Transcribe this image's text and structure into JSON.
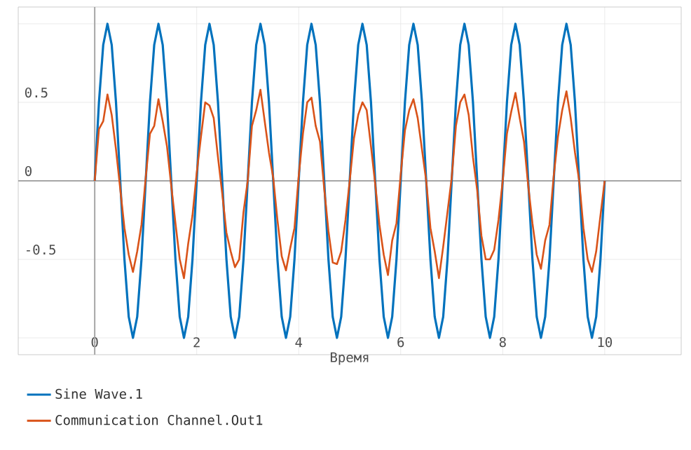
{
  "chart_data": {
    "type": "line",
    "xlabel": "Время",
    "x": [
      0,
      0.083,
      0.167,
      0.25,
      0.333,
      0.417,
      0.5,
      0.583,
      0.667,
      0.75,
      0.833,
      0.917,
      1,
      1.083,
      1.167,
      1.25,
      1.333,
      1.417,
      1.5,
      1.583,
      1.667,
      1.75,
      1.833,
      1.917,
      2,
      2.083,
      2.167,
      2.25,
      2.333,
      2.417,
      2.5,
      2.583,
      2.667,
      2.75,
      2.833,
      2.917,
      3,
      3.083,
      3.167,
      3.25,
      3.333,
      3.417,
      3.5,
      3.583,
      3.667,
      3.75,
      3.833,
      3.917,
      4,
      4.083,
      4.167,
      4.25,
      4.333,
      4.417,
      4.5,
      4.583,
      4.667,
      4.75,
      4.833,
      4.917,
      5,
      5.083,
      5.167,
      5.25,
      5.333,
      5.417,
      5.5,
      5.583,
      5.667,
      5.75,
      5.833,
      5.917,
      6,
      6.083,
      6.167,
      6.25,
      6.333,
      6.417,
      6.5,
      6.583,
      6.667,
      6.75,
      6.833,
      6.917,
      7,
      7.083,
      7.167,
      7.25,
      7.333,
      7.417,
      7.5,
      7.583,
      7.667,
      7.75,
      7.833,
      7.917,
      8,
      8.083,
      8.167,
      8.25,
      8.333,
      8.417,
      8.5,
      8.583,
      8.667,
      8.75,
      8.833,
      8.917,
      9,
      9.083,
      9.167,
      9.25,
      9.333,
      9.417,
      9.5,
      9.583,
      9.667,
      9.75,
      9.833,
      9.917,
      10
    ],
    "series": [
      {
        "name": "Sine Wave.1",
        "color": "#0072bd",
        "values": [
          0,
          0.5,
          0.866,
          1,
          0.866,
          0.5,
          0,
          -0.5,
          -0.866,
          -1,
          -0.866,
          -0.5,
          0,
          0.5,
          0.866,
          1,
          0.866,
          0.5,
          0,
          -0.5,
          -0.866,
          -1,
          -0.866,
          -0.5,
          0,
          0.5,
          0.866,
          1,
          0.866,
          0.5,
          0,
          -0.5,
          -0.866,
          -1,
          -0.866,
          -0.5,
          0,
          0.5,
          0.866,
          1,
          0.866,
          0.5,
          0,
          -0.5,
          -0.866,
          -1,
          -0.866,
          -0.5,
          0,
          0.5,
          0.866,
          1,
          0.866,
          0.5,
          0,
          -0.5,
          -0.866,
          -1,
          -0.866,
          -0.5,
          0,
          0.5,
          0.866,
          1,
          0.866,
          0.5,
          0,
          -0.5,
          -0.866,
          -1,
          -0.866,
          -0.5,
          0,
          0.5,
          0.866,
          1,
          0.866,
          0.5,
          0,
          -0.5,
          -0.866,
          -1,
          -0.866,
          -0.5,
          0,
          0.5,
          0.866,
          1,
          0.866,
          0.5,
          0,
          -0.5,
          -0.866,
          -1,
          -0.866,
          -0.5,
          0,
          0.5,
          0.866,
          1,
          0.866,
          0.5,
          0,
          -0.5,
          -0.866,
          -1,
          -0.866,
          -0.5,
          0,
          0.5,
          0.866,
          1,
          0.866,
          0.5,
          0,
          -0.5,
          -0.866,
          -1,
          -0.866,
          -0.5,
          0
        ]
      },
      {
        "name": "Communication Channel.Out1",
        "color": "#d95319",
        "values": [
          0,
          0.33,
          0.38,
          0.55,
          0.42,
          0.2,
          -0.05,
          -0.3,
          -0.47,
          -0.58,
          -0.45,
          -0.28,
          0.02,
          0.3,
          0.35,
          0.52,
          0.38,
          0.22,
          -0.03,
          -0.27,
          -0.5,
          -0.62,
          -0.4,
          -0.22,
          0.05,
          0.28,
          0.5,
          0.48,
          0.4,
          0.15,
          -0.08,
          -0.33,
          -0.45,
          -0.55,
          -0.5,
          -0.2,
          0,
          0.35,
          0.45,
          0.58,
          0.38,
          0.18,
          0.02,
          -0.25,
          -0.48,
          -0.57,
          -0.43,
          -0.3,
          0.03,
          0.3,
          0.5,
          0.53,
          0.35,
          0.25,
          -0.05,
          -0.32,
          -0.52,
          -0.53,
          -0.45,
          -0.25,
          0,
          0.27,
          0.42,
          0.5,
          0.45,
          0.22,
          -0.02,
          -0.28,
          -0.47,
          -0.6,
          -0.38,
          -0.27,
          0.04,
          0.32,
          0.45,
          0.52,
          0.4,
          0.2,
          0,
          -0.3,
          -0.45,
          -0.62,
          -0.42,
          -0.2,
          0.02,
          0.35,
          0.5,
          0.55,
          0.42,
          0.15,
          -0.06,
          -0.35,
          -0.5,
          -0.5,
          -0.44,
          -0.25,
          0,
          0.3,
          0.44,
          0.56,
          0.4,
          0.25,
          -0.03,
          -0.27,
          -0.47,
          -0.56,
          -0.38,
          -0.28,
          0.03,
          0.28,
          0.45,
          0.57,
          0.4,
          0.18,
          0,
          -0.3,
          -0.5,
          -0.58,
          -0.45,
          -0.22,
          0
        ]
      }
    ],
    "xlim": [
      -1.5,
      11.5
    ],
    "ylim": [
      -1.107,
      1.107
    ],
    "xticks": [
      0,
      2,
      4,
      6,
      8,
      10
    ],
    "yticks": [
      {
        "value": -1,
        "label": null
      },
      -0.5,
      0,
      0.5,
      {
        "value": 1,
        "label": null
      }
    ],
    "grid": true,
    "legend": "bottom left",
    "line_style": "solid",
    "marker": "none"
  }
}
